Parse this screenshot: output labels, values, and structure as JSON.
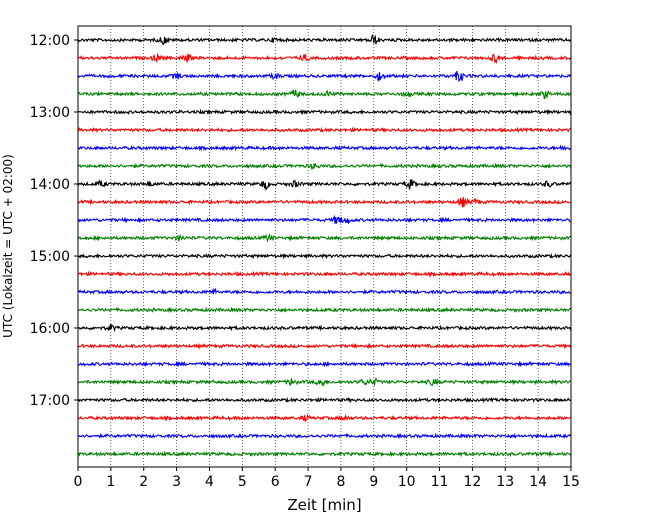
{
  "chart_data": {
    "type": "line",
    "title": "",
    "xlabel": "Zeit  [min]",
    "ylabel": "UTC (Lokalzeit = UTC + 02:00)",
    "xlim": [
      0,
      15
    ],
    "x_ticks": [
      "0",
      "1",
      "2",
      "3",
      "4",
      "5",
      "6",
      "7",
      "8",
      "9",
      "10",
      "11",
      "12",
      "13",
      "14",
      "15"
    ],
    "y_ticks": [
      "12:00",
      "13:00",
      "14:00",
      "15:00",
      "16:00",
      "17:00"
    ],
    "grid": "vertical dotted lines at each minute",
    "legend": "none",
    "trace_interval_minutes": 15,
    "series": [
      {
        "start": "12:00",
        "color": "#000000",
        "bursts": [
          [
            2.6,
            0.8
          ],
          [
            9.0,
            1.0
          ],
          [
            6.0,
            0.4
          ]
        ]
      },
      {
        "start": "12:15",
        "color": "#ff0000",
        "bursts": [
          [
            2.4,
            0.8
          ],
          [
            3.3,
            0.9
          ],
          [
            6.9,
            0.6
          ],
          [
            12.7,
            0.9
          ]
        ]
      },
      {
        "start": "12:30",
        "color": "#0000ff",
        "bursts": [
          [
            3.0,
            0.6
          ],
          [
            9.2,
            1.0
          ],
          [
            11.6,
            1.3
          ],
          [
            6.0,
            0.5
          ]
        ]
      },
      {
        "start": "12:45",
        "color": "#008000",
        "bursts": [
          [
            6.6,
            0.9
          ],
          [
            7.6,
            0.5
          ],
          [
            10.0,
            0.5
          ],
          [
            14.2,
            0.8
          ]
        ]
      },
      {
        "start": "13:00",
        "color": "#000000",
        "bursts": []
      },
      {
        "start": "13:15",
        "color": "#ff0000",
        "bursts": []
      },
      {
        "start": "13:30",
        "color": "#0000ff",
        "bursts": [
          [
            14.8,
            0.4
          ]
        ]
      },
      {
        "start": "13:45",
        "color": "#008000",
        "bursts": [
          [
            7.2,
            0.5
          ]
        ]
      },
      {
        "start": "14:00",
        "color": "#000000",
        "bursts": [
          [
            0.7,
            0.6
          ],
          [
            2.2,
            0.4
          ],
          [
            5.7,
            1.0
          ],
          [
            6.6,
            0.6
          ],
          [
            10.1,
            1.0
          ],
          [
            14.3,
            0.6
          ]
        ]
      },
      {
        "start": "14:15",
        "color": "#ff0000",
        "bursts": [
          [
            11.7,
            1.0
          ],
          [
            12.1,
            0.5
          ]
        ]
      },
      {
        "start": "14:30",
        "color": "#0000ff",
        "bursts": [
          [
            7.9,
            1.0
          ],
          [
            8.2,
            0.6
          ]
        ]
      },
      {
        "start": "14:45",
        "color": "#008000",
        "bursts": [
          [
            3.1,
            0.5
          ],
          [
            5.8,
            0.6
          ]
        ]
      },
      {
        "start": "15:00",
        "color": "#000000",
        "bursts": []
      },
      {
        "start": "15:15",
        "color": "#ff0000",
        "bursts": []
      },
      {
        "start": "15:30",
        "color": "#0000ff",
        "bursts": [
          [
            4.1,
            0.4
          ]
        ]
      },
      {
        "start": "15:45",
        "color": "#008000",
        "bursts": []
      },
      {
        "start": "16:00",
        "color": "#000000",
        "bursts": [
          [
            1.0,
            0.6
          ]
        ]
      },
      {
        "start": "16:15",
        "color": "#ff0000",
        "bursts": []
      },
      {
        "start": "16:30",
        "color": "#0000ff",
        "bursts": []
      },
      {
        "start": "16:45",
        "color": "#008000",
        "bursts": [
          [
            6.5,
            0.7
          ],
          [
            7.4,
            0.9
          ],
          [
            8.7,
            0.5
          ],
          [
            9.0,
            0.7
          ],
          [
            10.8,
            0.7
          ]
        ]
      },
      {
        "start": "17:00",
        "color": "#000000",
        "bursts": []
      },
      {
        "start": "17:15",
        "color": "#ff0000",
        "bursts": [
          [
            6.9,
            0.5
          ],
          [
            8.1,
            0.4
          ]
        ]
      },
      {
        "start": "17:30",
        "color": "#0000ff",
        "bursts": []
      },
      {
        "start": "17:45",
        "color": "#008000",
        "bursts": []
      }
    ]
  }
}
